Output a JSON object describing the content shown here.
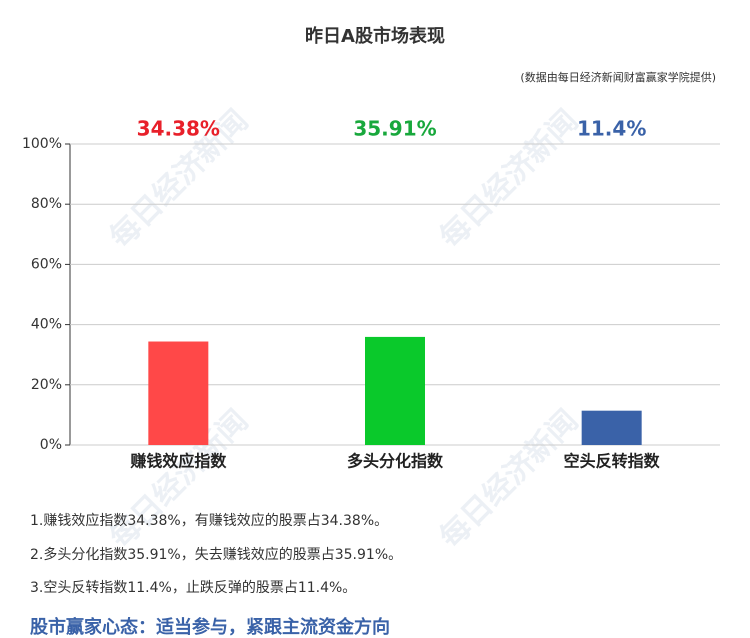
{
  "chart_data": {
    "type": "bar",
    "title": "昨日A股市场表现",
    "subtitle": "(数据由每日经济新闻财富赢家学院提供)",
    "categories": [
      "赚钱效应指数",
      "多头分化指数",
      "空头反转指数"
    ],
    "values": [
      34.38,
      35.91,
      11.4
    ],
    "value_labels": [
      "34.38%",
      "35.91%",
      "11.4%"
    ],
    "colors": [
      "#ff4848",
      "#0ac92b",
      "#3a62a8"
    ],
    "label_colors": [
      "#e8202a",
      "#18a83c",
      "#3a62a8"
    ],
    "ylim": [
      0,
      100
    ],
    "yticks": [
      {
        "value": 0,
        "label": "0%"
      },
      {
        "value": 20,
        "label": "20%"
      },
      {
        "value": 40,
        "label": "40%"
      },
      {
        "value": 60,
        "label": "60%"
      },
      {
        "value": 80,
        "label": "80%"
      },
      {
        "value": 100,
        "label": "100%"
      }
    ],
    "grid": true
  },
  "notes": [
    "1.赚钱效应指数34.38%，有赚钱效应的股票占34.38%。",
    "2.多头分化指数35.91%，失去赚钱效应的股票占35.91%。",
    "3.空头反转指数11.4%，止跌反弹的股票占11.4%。"
  ],
  "conclusion": "股市赢家心态：适当参与，紧跟主流资金方向",
  "watermark": "每日经济新闻"
}
